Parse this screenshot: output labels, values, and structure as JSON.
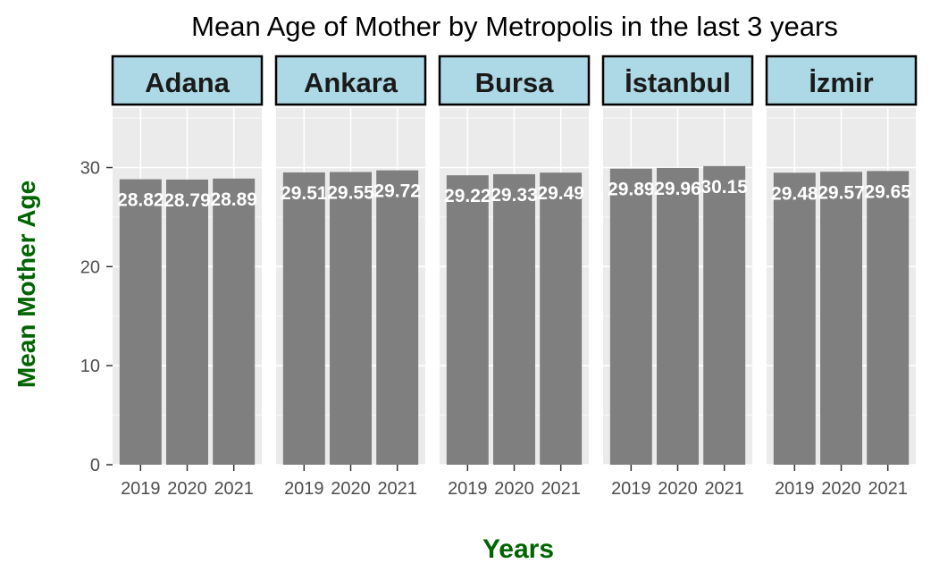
{
  "chart_data": {
    "type": "bar",
    "title": "Mean Age of Mother by Metropolis in the last 3 years",
    "xlabel": "Years",
    "ylabel": "Mean Mother Age",
    "ylim": [
      0,
      36
    ],
    "yticks": [
      0,
      10,
      20,
      30
    ],
    "grid": true,
    "facet_strip_color": "#add8e6",
    "bar_color": "#7f7f7f",
    "panel_background": "#ebebeb",
    "axis_label_color": "#006400",
    "categories": [
      "2019",
      "2020",
      "2021"
    ],
    "facets": [
      {
        "name": "Adana",
        "values": [
          28.82,
          28.79,
          28.89
        ]
      },
      {
        "name": "Ankara",
        "values": [
          29.51,
          29.55,
          29.72
        ]
      },
      {
        "name": "Bursa",
        "values": [
          29.22,
          29.33,
          29.49
        ]
      },
      {
        "name": "İstanbul",
        "values": [
          29.89,
          29.96,
          30.15
        ]
      },
      {
        "name": "İzmir",
        "values": [
          29.48,
          29.57,
          29.65
        ]
      }
    ]
  }
}
